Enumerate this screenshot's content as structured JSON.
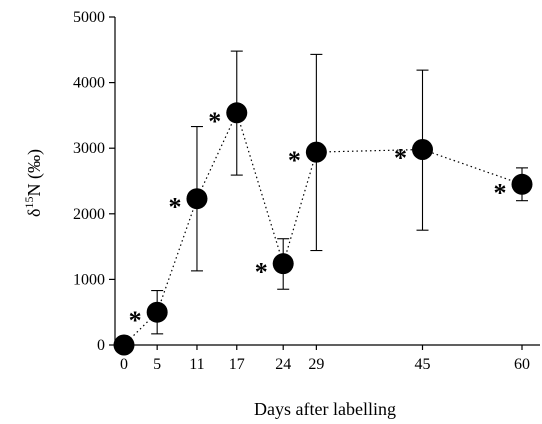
{
  "chart_data": {
    "type": "scatter",
    "title": "",
    "xlabel": "Days after labelling",
    "ylabel_parts": [
      "δ",
      "15",
      "N (‰)"
    ],
    "x_ticks": [
      0,
      5,
      11,
      17,
      24,
      29,
      45,
      60
    ],
    "y_ticks": [
      0,
      1000,
      2000,
      3000,
      4000,
      5000
    ],
    "xlim": [
      0,
      60
    ],
    "ylim": [
      0,
      5000
    ],
    "grid": false,
    "connector": "dotted",
    "marker": "filled-circle",
    "series": [
      {
        "points": [
          {
            "x": 0,
            "y": 0,
            "err_low": 0,
            "err_high": 0,
            "significant": false
          },
          {
            "x": 5,
            "y": 500,
            "err_low": 170,
            "err_high": 830,
            "significant": true
          },
          {
            "x": 11,
            "y": 2230,
            "err_low": 1130,
            "err_high": 3330,
            "significant": true
          },
          {
            "x": 17,
            "y": 3540,
            "err_low": 2590,
            "err_high": 4480,
            "significant": true
          },
          {
            "x": 24,
            "y": 1240,
            "err_low": 850,
            "err_high": 1620,
            "significant": true
          },
          {
            "x": 29,
            "y": 2940,
            "err_low": 1440,
            "err_high": 4430,
            "significant": true
          },
          {
            "x": 45,
            "y": 2980,
            "err_low": 1750,
            "err_high": 4190,
            "significant": true
          },
          {
            "x": 60,
            "y": 2450,
            "err_low": 2200,
            "err_high": 2700,
            "significant": true
          }
        ]
      }
    ],
    "annotation_symbol": "*"
  }
}
